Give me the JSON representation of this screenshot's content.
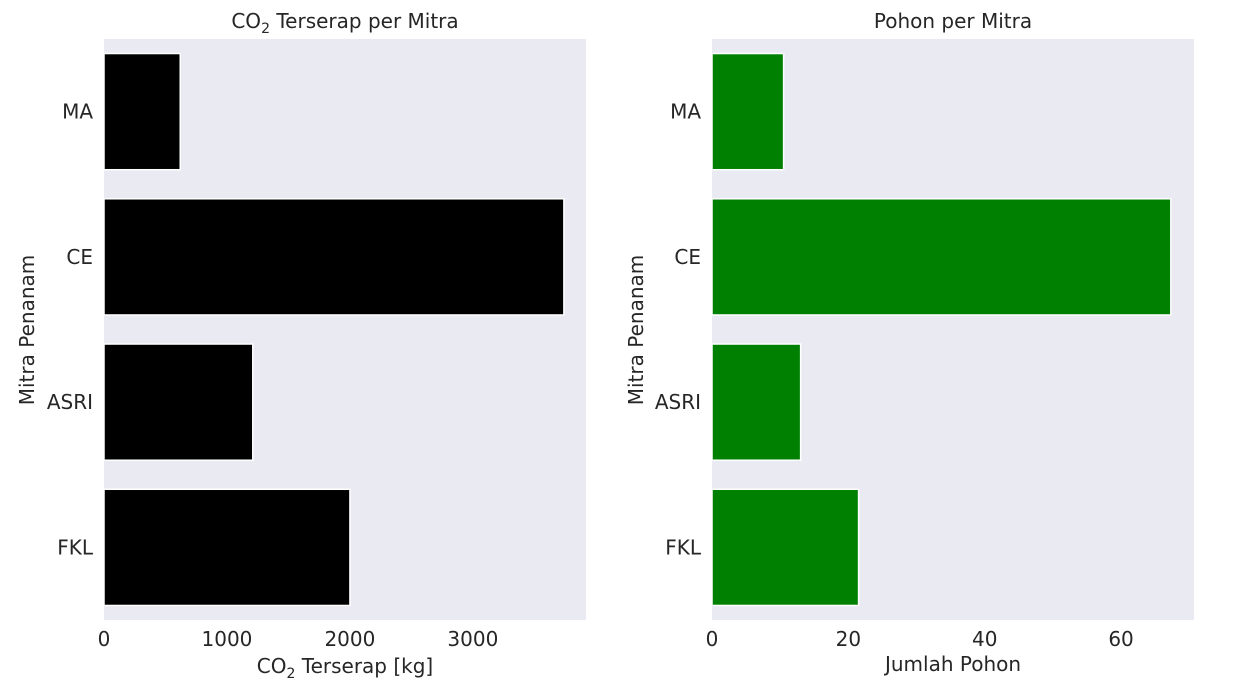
{
  "chart_data": [
    {
      "type": "bar",
      "orientation": "horizontal",
      "title": {
        "prefix": "CO",
        "sub": "2",
        "suffix": " Terserap per Mitra"
      },
      "xlabel": {
        "prefix": "CO",
        "sub": "2",
        "suffix": " Terserap [kg]"
      },
      "ylabel": "Mitra Penanam",
      "categories": [
        "MA",
        "CE",
        "ASRI",
        "FKL"
      ],
      "values": [
        620,
        3740,
        1210,
        2000
      ],
      "xlim": [
        0,
        3920
      ],
      "xticks": [
        0,
        1000,
        2000,
        3000
      ],
      "grid": false,
      "bar_color": "#000000",
      "background": "#eaeaf2"
    },
    {
      "type": "bar",
      "orientation": "horizontal",
      "title": "Pohon per Mitra",
      "xlabel": "Jumlah Pohon",
      "ylabel": "Mitra Penanam",
      "categories": [
        "MA",
        "CE",
        "ASRI",
        "FKL"
      ],
      "values": [
        10.5,
        67.3,
        13,
        21.5
      ],
      "xlim": [
        0,
        70.7
      ],
      "xticks": [
        0,
        20,
        40,
        60
      ],
      "grid": false,
      "bar_color": "#008000",
      "background": "#eaeaf2"
    }
  ]
}
